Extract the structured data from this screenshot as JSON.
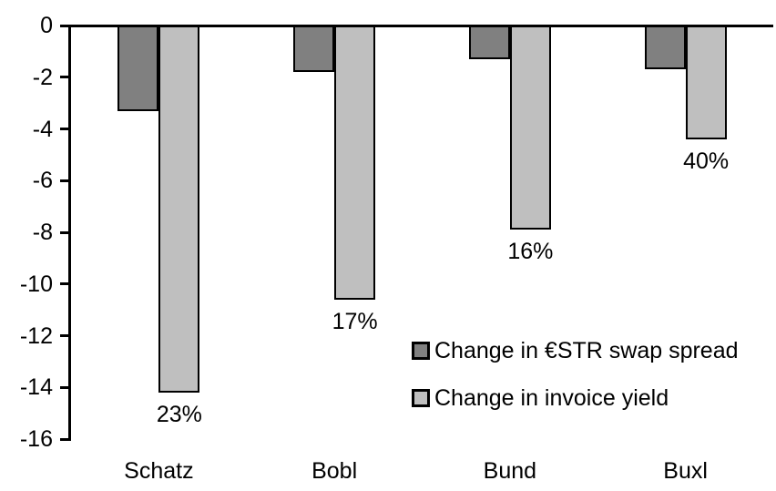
{
  "chart_data": {
    "type": "bar",
    "title": "",
    "xlabel": "",
    "ylabel": "",
    "categories": [
      "Schatz",
      "Bobl",
      "Bund",
      "Buxl"
    ],
    "series": [
      {
        "name": "Change in €STR swap spread",
        "color": "#808080",
        "values": [
          -3.3,
          -1.8,
          -1.3,
          -1.7
        ]
      },
      {
        "name": "Change in invoice yield",
        "color": "#bfbfbf",
        "values": [
          -14.2,
          -10.6,
          -7.9,
          -4.4
        ]
      }
    ],
    "bar_labels": [
      "23%",
      "17%",
      "16%",
      "40%"
    ],
    "ylim": [
      -16,
      0
    ],
    "yticks": [
      0,
      -2,
      -4,
      -6,
      -8,
      -10,
      -12,
      -14,
      -16
    ],
    "grid": false,
    "legend_position": "inside-right"
  }
}
